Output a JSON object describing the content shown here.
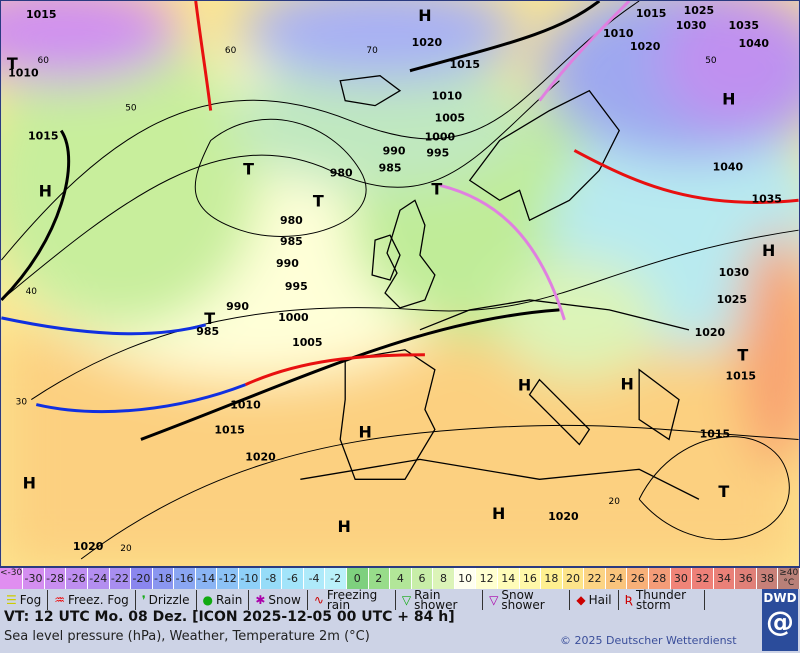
{
  "map": {
    "isobar_labels": [
      "1015",
      "1010",
      "1015",
      "1020",
      "1015",
      "1010",
      "1005",
      "1000",
      "995",
      "990",
      "985",
      "980",
      "980",
      "985",
      "990",
      "995",
      "990",
      "985",
      "1000",
      "1005",
      "1010",
      "1015",
      "1020",
      "1020",
      "1020",
      "1015",
      "1015",
      "1020",
      "1025",
      "1030",
      "1035",
      "1040",
      "1040",
      "1035",
      "1030",
      "1025",
      "1015",
      "1010",
      "1020"
    ],
    "high_label": "H",
    "low_label": "T",
    "temperature_labels": [
      "60",
      "50",
      "40",
      "30",
      "20",
      "60",
      "70",
      "50",
      "20"
    ]
  },
  "colorbar": {
    "values": [
      "<-30",
      "-30",
      "-28",
      "-26",
      "-24",
      "-22",
      "-20",
      "-18",
      "-16",
      "-14",
      "-12",
      "-10",
      "-8",
      "-6",
      "-4",
      "-2",
      "0",
      "2",
      "4",
      "6",
      "8",
      "10",
      "12",
      "14",
      "16",
      "18",
      "20",
      "22",
      "24",
      "26",
      "28",
      "30",
      "32",
      "34",
      "36",
      "38",
      "≥40 °C"
    ],
    "colors": [
      "#e08ef0",
      "#d48ef0",
      "#c98ef0",
      "#be8ef0",
      "#b38ef0",
      "#a88ef0",
      "#8a86ee",
      "#8a96f0",
      "#8aa6f2",
      "#8ab4f4",
      "#8cc2f6",
      "#8ed0f8",
      "#96dcf8",
      "#a2e4fa",
      "#aeeafa",
      "#baf0fa",
      "#7ed07e",
      "#98dc8a",
      "#b2e698",
      "#c8eea8",
      "#dcf4b8",
      "#fffff0",
      "#ffffd0",
      "#fffcb8",
      "#fff8a8",
      "#fff090",
      "#fde48a",
      "#fcd484",
      "#fac47c",
      "#f8b078",
      "#f49c78",
      "#f08478",
      "#ee8078",
      "#ea8078",
      "#e08078",
      "#c88078",
      "#b88078"
    ]
  },
  "legend": [
    {
      "icon": "fog",
      "label": "Fog"
    },
    {
      "icon": "freezing-fog",
      "label": "Freez. Fog"
    },
    {
      "icon": "drizzle",
      "label": "Drizzle"
    },
    {
      "icon": "rain",
      "label": "Rain"
    },
    {
      "icon": "snow",
      "label": "Snow"
    },
    {
      "icon": "freezing-rain",
      "label": "Freezing rain"
    },
    {
      "icon": "rain-shower",
      "label": "Rain shower"
    },
    {
      "icon": "snow-shower",
      "label": "Snow shower"
    },
    {
      "icon": "hail",
      "label": "Hail"
    },
    {
      "icon": "thunderstorm",
      "label": "Thunder storm"
    }
  ],
  "footer": {
    "valid_time": "VT: 12 UTC Mo.  08 Dez. [ICON 2025-12-05  00 UTC + 84 h]",
    "subtitle": "Sea level pressure (hPa), Weather, Temperature 2m (°C)",
    "copyright": "© 2025 Deutscher Wetterdienst",
    "logo": "DWD"
  },
  "colors": {
    "cold_front": "#1030e0",
    "warm_front": "#e81010",
    "occlusion": "#e080e0",
    "isobar": "#000000"
  }
}
